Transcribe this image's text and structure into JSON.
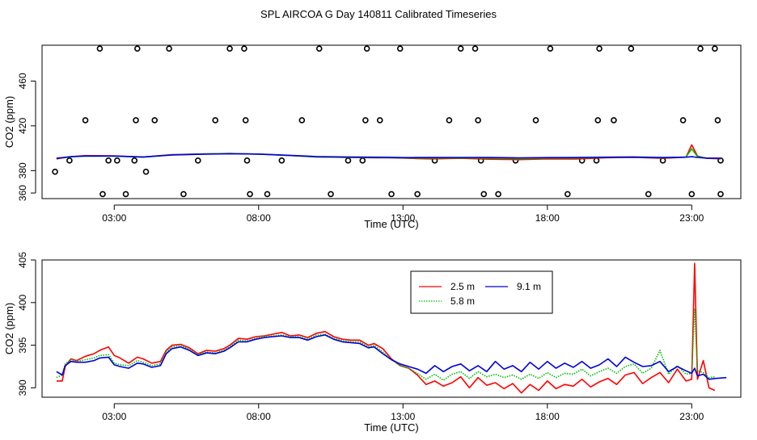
{
  "title": "SPL AIRCOA G  Day 140811  Calibrated Timeseries",
  "chart_data": [
    {
      "type": "scatter+line",
      "xlabel": "Time (UTC)",
      "ylabel": "CO2 (ppm)",
      "xlim": [
        0.5,
        24.7
      ],
      "ylim": [
        355,
        492
      ],
      "xticks": [
        3,
        8,
        13,
        18,
        23
      ],
      "xtick_labels": [
        "03:00",
        "08:00",
        "13:00",
        "18:00",
        "23:00"
      ],
      "yticks": [
        360,
        380,
        420,
        460
      ],
      "ytick_labels": [
        "360",
        "380",
        "420",
        "460"
      ],
      "grid": false,
      "circle_points": [
        [
          0.95,
          379
        ],
        [
          1.45,
          389
        ],
        [
          2.0,
          425
        ],
        [
          2.5,
          489
        ],
        [
          2.6,
          359
        ],
        [
          2.8,
          389
        ],
        [
          3.1,
          389
        ],
        [
          3.4,
          359
        ],
        [
          3.7,
          389
        ],
        [
          3.75,
          425
        ],
        [
          3.8,
          489
        ],
        [
          4.1,
          379
        ],
        [
          4.4,
          425
        ],
        [
          4.9,
          489
        ],
        [
          5.4,
          359
        ],
        [
          5.9,
          389
        ],
        [
          6.5,
          425
        ],
        [
          7.0,
          489
        ],
        [
          7.5,
          489
        ],
        [
          7.55,
          425
        ],
        [
          7.6,
          389
        ],
        [
          7.7,
          359
        ],
        [
          8.3,
          359
        ],
        [
          8.8,
          389
        ],
        [
          9.5,
          425
        ],
        [
          10.1,
          489
        ],
        [
          10.5,
          359
        ],
        [
          11.1,
          389
        ],
        [
          11.6,
          389
        ],
        [
          11.7,
          425
        ],
        [
          11.75,
          489
        ],
        [
          12.2,
          425
        ],
        [
          12.6,
          359
        ],
        [
          12.9,
          489
        ],
        [
          13.5,
          359
        ],
        [
          14.1,
          389
        ],
        [
          14.6,
          425
        ],
        [
          15.0,
          489
        ],
        [
          15.5,
          489
        ],
        [
          15.6,
          425
        ],
        [
          15.7,
          389
        ],
        [
          15.8,
          359
        ],
        [
          16.3,
          359
        ],
        [
          16.9,
          389
        ],
        [
          17.6,
          425
        ],
        [
          18.1,
          489
        ],
        [
          18.7,
          359
        ],
        [
          19.2,
          389
        ],
        [
          19.7,
          389
        ],
        [
          19.75,
          425
        ],
        [
          19.8,
          489
        ],
        [
          20.3,
          425
        ],
        [
          20.9,
          489
        ],
        [
          21.5,
          359
        ],
        [
          22.0,
          389
        ],
        [
          22.7,
          425
        ],
        [
          23.0,
          359
        ],
        [
          23.3,
          489
        ],
        [
          23.8,
          489
        ],
        [
          23.9,
          425
        ],
        [
          24.0,
          359
        ],
        [
          24.0,
          389
        ]
      ],
      "series": [
        {
          "name": "2.5 m",
          "color": "#ff0000",
          "x": [
            1.0,
            1.5,
            2.0,
            3.0,
            4.0,
            5.0,
            6.0,
            7.0,
            8.0,
            9.0,
            10.0,
            11.0,
            12.0,
            12.5,
            13.0,
            13.5,
            14.0,
            15.0,
            16.0,
            17.0,
            18.0,
            19.0,
            20.0,
            21.0,
            22.0,
            22.8,
            23.0,
            23.2,
            23.5,
            24.0
          ],
          "y": [
            390.5,
            392.5,
            393.4,
            393.2,
            392.1,
            394.2,
            394.9,
            395.3,
            394.7,
            393.6,
            392.2,
            391.8,
            391.5,
            391.4,
            391.2,
            390.8,
            390.5,
            391.0,
            390.2,
            389.8,
            390.5,
            390.4,
            391.5,
            391.8,
            391.0,
            392.0,
            403.0,
            393.0,
            391.0,
            390.5
          ]
        },
        {
          "name": "5.8 m",
          "color": "#00bb00",
          "x": [
            1.0,
            1.5,
            2.0,
            3.0,
            4.0,
            5.0,
            6.0,
            7.0,
            8.0,
            9.0,
            10.0,
            11.0,
            12.0,
            12.5,
            13.0,
            13.5,
            14.0,
            15.0,
            16.0,
            17.0,
            18.0,
            19.0,
            20.0,
            21.0,
            22.0,
            22.8,
            23.0,
            23.2,
            23.5,
            24.0
          ],
          "y": [
            391.0,
            392.3,
            393.1,
            393.0,
            392.0,
            394.1,
            394.8,
            395.2,
            394.7,
            393.6,
            392.3,
            391.9,
            391.7,
            391.6,
            391.5,
            391.3,
            391.2,
            391.5,
            391.1,
            390.8,
            391.2,
            391.3,
            391.8,
            392.0,
            391.5,
            392.2,
            399.5,
            392.5,
            391.3,
            390.9
          ]
        },
        {
          "name": "9.1 m",
          "color": "#0000dd",
          "x": [
            1.0,
            1.5,
            2.0,
            3.0,
            4.0,
            5.0,
            6.0,
            7.0,
            8.0,
            9.0,
            10.0,
            11.0,
            12.0,
            12.5,
            13.0,
            13.5,
            14.0,
            15.0,
            16.0,
            17.0,
            18.0,
            19.0,
            20.0,
            21.0,
            22.0,
            22.8,
            23.0,
            23.2,
            23.5,
            24.0
          ],
          "y": [
            391.0,
            392.5,
            393.0,
            393.0,
            392.2,
            394.0,
            394.6,
            395.0,
            394.8,
            393.7,
            392.6,
            392.2,
            392.0,
            391.9,
            391.6,
            391.7,
            391.7,
            391.8,
            391.7,
            391.4,
            391.6,
            391.7,
            392.0,
            392.2,
            391.7,
            392.0,
            392.4,
            391.8,
            391.2,
            391.1
          ]
        }
      ]
    },
    {
      "type": "line",
      "xlabel": "Time (UTC)",
      "ylabel": "CO2 (ppm)",
      "xlim": [
        0.5,
        24.7
      ],
      "ylim": [
        388.9,
        405.0
      ],
      "xticks": [
        3,
        8,
        13,
        18,
        23
      ],
      "xtick_labels": [
        "03:00",
        "08:00",
        "13:00",
        "18:00",
        "23:00"
      ],
      "yticks": [
        390,
        395,
        400,
        405
      ],
      "ytick_labels": [
        "390",
        "395",
        "400",
        "405"
      ],
      "grid": false,
      "legend_position": "top-center",
      "series": [
        {
          "name": "2.5 m",
          "color": "#ff0000",
          "dash": "solid",
          "x": [
            1.0,
            1.2,
            1.3,
            1.5,
            1.7,
            2.0,
            2.3,
            2.5,
            2.8,
            3.0,
            3.2,
            3.5,
            3.8,
            4.0,
            4.3,
            4.6,
            4.8,
            5.0,
            5.3,
            5.6,
            5.9,
            6.2,
            6.5,
            6.8,
            7.0,
            7.3,
            7.6,
            7.9,
            8.2,
            8.5,
            8.8,
            9.1,
            9.4,
            9.7,
            10.0,
            10.3,
            10.6,
            10.9,
            11.2,
            11.5,
            11.8,
            12.0,
            12.3,
            12.6,
            12.9,
            13.2,
            13.5,
            13.8,
            14.1,
            14.4,
            14.7,
            15.0,
            15.3,
            15.6,
            15.9,
            16.2,
            16.5,
            16.8,
            17.1,
            17.4,
            17.7,
            18.0,
            18.3,
            18.6,
            18.9,
            19.2,
            19.5,
            19.8,
            20.1,
            20.4,
            20.7,
            21.0,
            21.3,
            21.6,
            21.9,
            22.2,
            22.5,
            22.8,
            23.0,
            23.1,
            23.2,
            23.4,
            23.6,
            23.8
          ],
          "y": [
            390.8,
            390.8,
            392.5,
            393.4,
            393.2,
            393.7,
            394.0,
            394.4,
            394.8,
            393.8,
            393.5,
            392.9,
            393.6,
            393.4,
            392.9,
            393.1,
            394.4,
            395.0,
            395.1,
            394.7,
            394.0,
            394.4,
            394.3,
            394.6,
            395.0,
            395.8,
            395.7,
            396.0,
            396.1,
            396.3,
            396.5,
            396.1,
            396.2,
            395.9,
            396.4,
            396.6,
            396.0,
            395.7,
            395.6,
            395.6,
            395.0,
            395.2,
            394.6,
            393.4,
            392.6,
            392.3,
            391.5,
            390.4,
            390.8,
            390.2,
            390.6,
            391.3,
            390.0,
            391.2,
            390.3,
            390.6,
            389.9,
            390.5,
            389.4,
            390.4,
            389.7,
            390.8,
            389.9,
            390.4,
            390.2,
            391.0,
            390.1,
            390.7,
            391.1,
            390.4,
            391.5,
            391.8,
            390.5,
            391.2,
            391.8,
            390.6,
            392.2,
            390.8,
            391.0,
            404.6,
            391.0,
            393.2,
            390.0,
            389.7
          ]
        },
        {
          "name": "5.8 m",
          "color": "#00bb00",
          "dash": "dotted",
          "x": [
            1.0,
            1.2,
            1.3,
            1.5,
            1.7,
            2.0,
            2.3,
            2.5,
            2.8,
            3.0,
            3.2,
            3.5,
            3.8,
            4.0,
            4.3,
            4.6,
            4.8,
            5.0,
            5.3,
            5.6,
            5.9,
            6.2,
            6.5,
            6.8,
            7.0,
            7.3,
            7.6,
            7.9,
            8.2,
            8.5,
            8.8,
            9.1,
            9.4,
            9.7,
            10.0,
            10.3,
            10.6,
            10.9,
            11.2,
            11.5,
            11.8,
            12.0,
            12.3,
            12.6,
            12.9,
            13.2,
            13.5,
            13.8,
            14.1,
            14.4,
            14.7,
            15.0,
            15.3,
            15.6,
            15.9,
            16.2,
            16.5,
            16.8,
            17.1,
            17.4,
            17.7,
            18.0,
            18.3,
            18.6,
            18.9,
            19.2,
            19.5,
            19.8,
            20.1,
            20.4,
            20.7,
            21.0,
            21.3,
            21.6,
            21.9,
            22.2,
            22.5,
            22.8,
            23.0,
            23.1,
            23.2,
            23.4,
            23.6,
            23.8
          ],
          "y": [
            391.2,
            391.5,
            392.8,
            393.3,
            393.1,
            393.3,
            393.5,
            393.8,
            393.9,
            392.9,
            392.7,
            392.6,
            393.2,
            393.0,
            392.6,
            392.8,
            394.2,
            394.8,
            395.0,
            394.5,
            393.9,
            394.2,
            394.1,
            394.4,
            394.8,
            395.6,
            395.5,
            395.8,
            396.0,
            396.1,
            396.2,
            396.0,
            396.0,
            395.7,
            396.2,
            396.3,
            395.8,
            395.5,
            395.4,
            395.4,
            394.8,
            395.0,
            394.2,
            393.3,
            392.6,
            392.3,
            391.7,
            391.0,
            391.6,
            390.9,
            391.6,
            391.9,
            391.1,
            391.9,
            391.3,
            391.6,
            391.2,
            391.5,
            391.0,
            391.6,
            391.1,
            391.8,
            391.2,
            391.7,
            391.6,
            392.2,
            391.4,
            391.9,
            392.3,
            391.7,
            392.5,
            392.8,
            391.7,
            392.3,
            394.4,
            391.6,
            392.6,
            391.6,
            391.7,
            399.3,
            392.0,
            391.8,
            391.2,
            391.3
          ]
        },
        {
          "name": "9.1 m",
          "color": "#0000dd",
          "dash": "solid",
          "x": [
            1.0,
            1.2,
            1.3,
            1.5,
            1.7,
            2.0,
            2.3,
            2.5,
            2.8,
            3.0,
            3.2,
            3.5,
            3.8,
            4.0,
            4.3,
            4.6,
            4.8,
            5.0,
            5.3,
            5.6,
            5.9,
            6.2,
            6.5,
            6.8,
            7.0,
            7.3,
            7.6,
            7.9,
            8.2,
            8.5,
            8.8,
            9.1,
            9.4,
            9.7,
            10.0,
            10.3,
            10.6,
            10.9,
            11.2,
            11.5,
            11.8,
            12.0,
            12.3,
            12.6,
            12.9,
            13.2,
            13.5,
            13.8,
            14.1,
            14.4,
            14.7,
            15.0,
            15.3,
            15.6,
            15.9,
            16.2,
            16.5,
            16.8,
            17.1,
            17.4,
            17.7,
            18.0,
            18.3,
            18.6,
            18.9,
            19.2,
            19.5,
            19.8,
            20.1,
            20.4,
            20.7,
            21.0,
            21.3,
            21.6,
            21.9,
            22.2,
            22.5,
            22.8,
            23.0,
            23.1,
            23.2,
            23.4,
            23.6,
            23.8,
            24.2
          ],
          "y": [
            391.9,
            391.5,
            392.6,
            393.1,
            393.0,
            393.0,
            393.2,
            393.5,
            393.6,
            392.7,
            392.5,
            392.3,
            392.9,
            392.8,
            392.4,
            392.6,
            394.0,
            394.6,
            394.8,
            394.4,
            393.8,
            394.1,
            394.0,
            394.3,
            394.7,
            395.4,
            395.4,
            395.7,
            395.9,
            396.0,
            396.1,
            395.9,
            395.9,
            395.6,
            396.0,
            396.2,
            395.7,
            395.4,
            395.3,
            395.2,
            394.7,
            394.8,
            394.0,
            393.3,
            392.8,
            392.5,
            392.2,
            391.7,
            392.6,
            391.9,
            392.5,
            392.8,
            392.0,
            392.6,
            391.9,
            393.1,
            392.2,
            392.6,
            391.9,
            393.0,
            392.2,
            393.1,
            392.3,
            392.9,
            392.4,
            393.1,
            392.3,
            392.7,
            393.4,
            392.5,
            393.6,
            393.0,
            392.5,
            392.6,
            393.1,
            391.9,
            392.5,
            392.0,
            391.7,
            392.3,
            391.4,
            391.6,
            391.0,
            391.1,
            391.2
          ]
        }
      ]
    }
  ]
}
